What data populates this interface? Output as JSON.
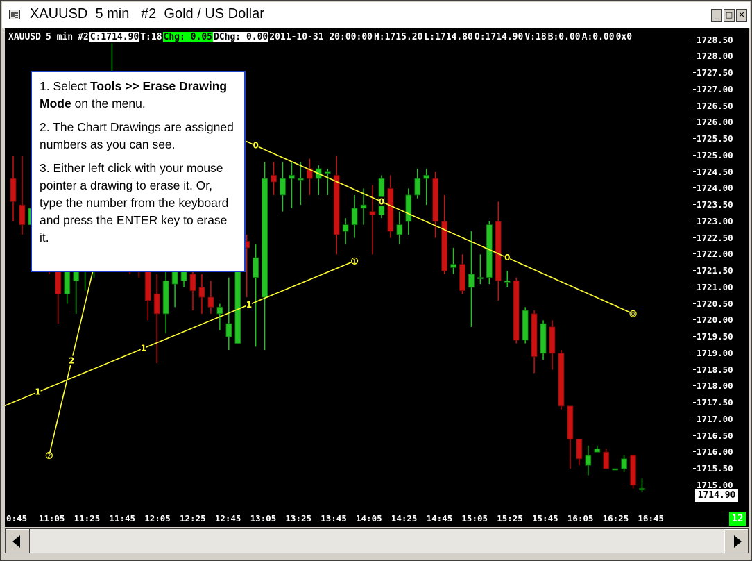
{
  "window": {
    "title": "XAUUSD  5 min   #2  Gold / US Dollar",
    "icon": "chart-window-icon",
    "controls": [
      "_",
      "□",
      "✕"
    ]
  },
  "info_bar": {
    "symbol": "XAUUSD",
    "interval": "5 min",
    "chart_number": "#2",
    "close": "C:1714.90",
    "ticks": "T:18",
    "change": "Chg: 0.05",
    "daily_change": "DChg: 0.00",
    "datetime": "2011-10-31 20:00:00",
    "high": "H:1715.20",
    "low": "L:1714.80",
    "open": "O:1714.90",
    "volume": "V:18",
    "bid": "B:0.00",
    "ask": "A:0.00",
    "extra": "0x0"
  },
  "callout": {
    "step1_prefix": "1. Select ",
    "step1_bold": "Tools >> Erase Drawing Mode",
    "step1_suffix": " on the menu.",
    "step2": "2. The Chart Drawings are assigned numbers as you can see.",
    "step3": "3.  Either left click with your mouse pointer a drawing to erase it.  Or, type the number from the keyboard and press the ENTER key to erase it."
  },
  "current_price": "1714.90",
  "bar_count": "12",
  "colors": {
    "background": "#000000",
    "up_candle": "#22c322",
    "down_candle": "#cc1111",
    "drawing": "#ffff33",
    "accent_green": "#00ff00"
  },
  "chart_data": {
    "type": "candlestick",
    "y_ticks": [
      "1728.50",
      "1728.00",
      "1727.50",
      "1727.00",
      "1726.50",
      "1726.00",
      "1725.50",
      "1725.00",
      "1724.50",
      "1724.00",
      "1723.50",
      "1723.00",
      "1722.50",
      "1722.00",
      "1721.50",
      "1721.00",
      "1720.50",
      "1720.00",
      "1719.50",
      "1719.00",
      "1718.50",
      "1718.00",
      "1717.50",
      "1717.00",
      "1716.50",
      "1716.00",
      "1715.50",
      "1715.00"
    ],
    "x_ticks": [
      "0:45",
      "11:05",
      "11:25",
      "11:45",
      "12:05",
      "12:25",
      "12:45",
      "13:05",
      "13:25",
      "13:45",
      "14:05",
      "14:25",
      "14:45",
      "15:05",
      "15:25",
      "15:45",
      "16:05",
      "16:25",
      "16:45"
    ],
    "ylim": [
      1714.7,
      1728.6
    ],
    "candles": [
      {
        "o": 1724.3,
        "h": 1725.0,
        "l": 1723.0,
        "c": 1723.6
      },
      {
        "o": 1723.5,
        "h": 1725.0,
        "l": 1722.6,
        "c": 1722.9
      },
      {
        "o": 1722.9,
        "h": 1724.5,
        "l": 1722.0,
        "c": 1723.4
      },
      {
        "o": 1722.6,
        "h": 1723.3,
        "l": 1721.5,
        "c": 1722.1
      },
      {
        "o": 1722.0,
        "h": 1722.6,
        "l": 1721.4,
        "c": 1721.5
      },
      {
        "o": 1721.6,
        "h": 1722.4,
        "l": 1719.9,
        "c": 1720.8
      },
      {
        "o": 1720.8,
        "h": 1722.4,
        "l": 1720.5,
        "c": 1721.6
      },
      {
        "o": 1721.2,
        "h": 1722.0,
        "l": 1720.2,
        "c": 1721.6
      },
      {
        "o": 1721.5,
        "h": 1722.3,
        "l": 1720.9,
        "c": 1721.9
      },
      {
        "o": 1721.9,
        "h": 1722.6,
        "l": 1721.3,
        "c": 1722.2
      },
      {
        "o": 1722.3,
        "h": 1724.3,
        "l": 1722.0,
        "c": 1723.9
      },
      {
        "o": 1723.9,
        "h": 1728.4,
        "l": 1723.3,
        "c": 1725.1
      },
      {
        "o": 1725.1,
        "h": 1725.8,
        "l": 1722.4,
        "c": 1722.9
      },
      {
        "o": 1722.8,
        "h": 1723.8,
        "l": 1721.4,
        "c": 1722.1
      },
      {
        "o": 1722.0,
        "h": 1722.6,
        "l": 1721.3,
        "c": 1721.5
      },
      {
        "o": 1721.6,
        "h": 1722.0,
        "l": 1720.0,
        "c": 1720.6
      },
      {
        "o": 1720.8,
        "h": 1721.4,
        "l": 1718.7,
        "c": 1720.2
      },
      {
        "o": 1720.2,
        "h": 1721.7,
        "l": 1719.6,
        "c": 1721.2
      },
      {
        "o": 1721.1,
        "h": 1722.4,
        "l": 1720.4,
        "c": 1721.7
      },
      {
        "o": 1721.2,
        "h": 1722.0,
        "l": 1721.0,
        "c": 1721.6
      },
      {
        "o": 1721.4,
        "h": 1722.1,
        "l": 1720.3,
        "c": 1720.9
      },
      {
        "o": 1721.0,
        "h": 1721.4,
        "l": 1720.2,
        "c": 1720.7
      },
      {
        "o": 1720.7,
        "h": 1721.2,
        "l": 1720.2,
        "c": 1720.4
      },
      {
        "o": 1720.2,
        "h": 1720.5,
        "l": 1719.7,
        "c": 1720.4
      },
      {
        "o": 1719.5,
        "h": 1721.3,
        "l": 1719.1,
        "c": 1719.9
      },
      {
        "o": 1719.3,
        "h": 1722.6,
        "l": 1719.3,
        "c": 1722.5
      },
      {
        "o": 1722.4,
        "h": 1722.6,
        "l": 1720.7,
        "c": 1722.2
      },
      {
        "o": 1721.3,
        "h": 1722.3,
        "l": 1719.2,
        "c": 1721.9
      },
      {
        "o": 1720.7,
        "h": 1724.8,
        "l": 1719.1,
        "c": 1724.3
      },
      {
        "o": 1724.4,
        "h": 1724.8,
        "l": 1723.8,
        "c": 1724.2
      },
      {
        "o": 1723.8,
        "h": 1724.8,
        "l": 1723.3,
        "c": 1724.3
      },
      {
        "o": 1724.3,
        "h": 1724.8,
        "l": 1723.4,
        "c": 1724.4
      },
      {
        "o": 1724.3,
        "h": 1724.8,
        "l": 1723.5,
        "c": 1724.3
      },
      {
        "o": 1724.6,
        "h": 1724.9,
        "l": 1723.8,
        "c": 1724.3
      },
      {
        "o": 1724.3,
        "h": 1724.7,
        "l": 1723.8,
        "c": 1724.6
      },
      {
        "o": 1724.5,
        "h": 1724.6,
        "l": 1723.8,
        "c": 1724.5
      },
      {
        "o": 1724.4,
        "h": 1725.0,
        "l": 1722.0,
        "c": 1722.6
      },
      {
        "o": 1722.7,
        "h": 1723.1,
        "l": 1722.3,
        "c": 1722.9
      },
      {
        "o": 1722.9,
        "h": 1723.8,
        "l": 1722.5,
        "c": 1723.4
      },
      {
        "o": 1723.4,
        "h": 1724.0,
        "l": 1722.9,
        "c": 1723.5
      },
      {
        "o": 1723.3,
        "h": 1724.1,
        "l": 1722.0,
        "c": 1723.2
      },
      {
        "o": 1723.2,
        "h": 1724.4,
        "l": 1723.1,
        "c": 1724.3
      },
      {
        "o": 1724.0,
        "h": 1724.4,
        "l": 1722.5,
        "c": 1722.7
      },
      {
        "o": 1722.6,
        "h": 1723.3,
        "l": 1722.3,
        "c": 1722.9
      },
      {
        "o": 1723.0,
        "h": 1724.0,
        "l": 1722.6,
        "c": 1723.8
      },
      {
        "o": 1723.8,
        "h": 1724.6,
        "l": 1723.7,
        "c": 1724.3
      },
      {
        "o": 1724.3,
        "h": 1724.6,
        "l": 1723.5,
        "c": 1724.4
      },
      {
        "o": 1724.3,
        "h": 1724.5,
        "l": 1722.5,
        "c": 1723.0
      },
      {
        "o": 1723.0,
        "h": 1723.8,
        "l": 1721.4,
        "c": 1721.5
      },
      {
        "o": 1721.6,
        "h": 1722.2,
        "l": 1721.4,
        "c": 1721.7
      },
      {
        "o": 1721.7,
        "h": 1722.0,
        "l": 1720.8,
        "c": 1720.9
      },
      {
        "o": 1721.0,
        "h": 1722.7,
        "l": 1719.8,
        "c": 1721.4
      },
      {
        "o": 1721.3,
        "h": 1722.0,
        "l": 1721.1,
        "c": 1721.3
      },
      {
        "o": 1721.3,
        "h": 1723.0,
        "l": 1721.1,
        "c": 1722.9
      },
      {
        "o": 1723.0,
        "h": 1723.6,
        "l": 1720.6,
        "c": 1721.2
      },
      {
        "o": 1721.2,
        "h": 1721.5,
        "l": 1721.0,
        "c": 1721.2
      },
      {
        "o": 1721.2,
        "h": 1721.3,
        "l": 1719.3,
        "c": 1719.4
      },
      {
        "o": 1719.4,
        "h": 1720.4,
        "l": 1719.3,
        "c": 1720.3
      },
      {
        "o": 1720.2,
        "h": 1720.3,
        "l": 1718.4,
        "c": 1718.9
      },
      {
        "o": 1719.0,
        "h": 1720.0,
        "l": 1718.8,
        "c": 1719.9
      },
      {
        "o": 1719.8,
        "h": 1720.0,
        "l": 1718.5,
        "c": 1719.0
      },
      {
        "o": 1719.0,
        "h": 1719.1,
        "l": 1717.3,
        "c": 1717.4
      },
      {
        "o": 1717.4,
        "h": 1717.4,
        "l": 1715.5,
        "c": 1716.4
      },
      {
        "o": 1716.4,
        "h": 1716.4,
        "l": 1715.6,
        "c": 1715.8
      },
      {
        "o": 1715.6,
        "h": 1716.2,
        "l": 1715.3,
        "c": 1715.9
      },
      {
        "o": 1716.0,
        "h": 1716.2,
        "l": 1716.0,
        "c": 1716.1
      },
      {
        "o": 1716.0,
        "h": 1716.1,
        "l": 1715.5,
        "c": 1715.5
      },
      {
        "o": 1715.5,
        "h": 1715.5,
        "l": 1715.5,
        "c": 1715.5
      },
      {
        "o": 1715.5,
        "h": 1715.9,
        "l": 1715.4,
        "c": 1715.8
      },
      {
        "o": 1715.9,
        "h": 1715.9,
        "l": 1714.9,
        "c": 1715.0
      },
      {
        "o": 1714.9,
        "h": 1715.2,
        "l": 1714.8,
        "c": 1714.9
      }
    ],
    "drawings": [
      {
        "id": "0",
        "from": [
          13,
          1727.0
        ],
        "to": [
          69,
          1720.2
        ],
        "labels": [
          "0",
          "0",
          "0"
        ]
      },
      {
        "id": "1",
        "from": [
          -9,
          1716.5
        ],
        "to": [
          38,
          1721.8
        ],
        "labels": [
          "1",
          "1",
          "1"
        ]
      },
      {
        "id": "2",
        "from": [
          4,
          1715.9
        ],
        "to": [
          14,
          1727.4
        ],
        "labels": [
          "2",
          "2",
          "2"
        ]
      }
    ]
  }
}
